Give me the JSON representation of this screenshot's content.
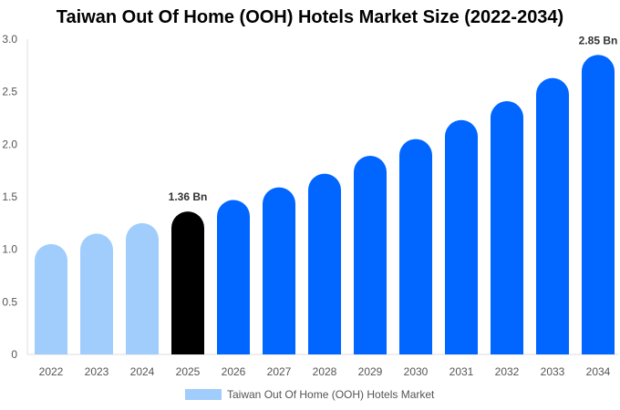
{
  "chart_data": {
    "type": "bar",
    "title": "Taiwan Out Of Home (OOH) Hotels Market Size (2022-2034)",
    "categories": [
      "2022",
      "2023",
      "2024",
      "2025",
      "2026",
      "2027",
      "2028",
      "2029",
      "2030",
      "2031",
      "2032",
      "2033",
      "2034"
    ],
    "series": [
      {
        "name": "Taiwan Out Of Home (OOH) Hotels Market",
        "values": [
          1.05,
          1.15,
          1.25,
          1.36,
          1.47,
          1.59,
          1.72,
          1.89,
          2.05,
          2.23,
          2.41,
          2.63,
          2.85
        ]
      }
    ],
    "data_labels": [
      {
        "category": "2025",
        "text": "1.36 Bn"
      },
      {
        "category": "2034",
        "text": "2.85 Bn"
      }
    ],
    "ylim": [
      0,
      3.0
    ],
    "yticks": [
      "0",
      "0.5",
      "1.0",
      "1.5",
      "2.0",
      "2.5",
      "3.0"
    ],
    "grid": false,
    "legend_position": "bottom",
    "colors": {
      "historical": "#a0cdfc",
      "current": "#000000",
      "forecast": "#0066ff"
    }
  }
}
